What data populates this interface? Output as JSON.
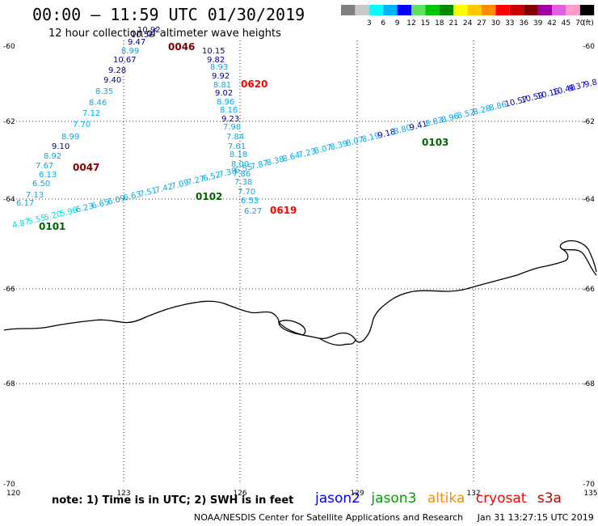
{
  "header": {
    "title": "00:00 – 11:59 UTC 01/30/2019",
    "subtitle": "12 hour collection of altimeter wave heights"
  },
  "legend": {
    "unit": "(ft)",
    "swatches": [
      {
        "label": "",
        "color": "#808080"
      },
      {
        "label": "3",
        "color": "#c8c8c8"
      },
      {
        "label": "6",
        "color": "#00ffff"
      },
      {
        "label": "9",
        "color": "#00b4ff"
      },
      {
        "label": "12",
        "color": "#0000ff"
      },
      {
        "label": "15",
        "color": "#60e060"
      },
      {
        "label": "18",
        "color": "#00c800"
      },
      {
        "label": "21",
        "color": "#008c00"
      },
      {
        "label": "24",
        "color": "#ffff00"
      },
      {
        "label": "27",
        "color": "#ffc800"
      },
      {
        "label": "30",
        "color": "#ff8c00"
      },
      {
        "label": "33",
        "color": "#ff0000"
      },
      {
        "label": "36",
        "color": "#c80000"
      },
      {
        "label": "39",
        "color": "#800000"
      },
      {
        "label": "42",
        "color": "#a000a0"
      },
      {
        "label": "45",
        "color": "#e060e0"
      },
      {
        "label": "70",
        "color": "#ff9ccc"
      },
      {
        "label": "",
        "color": "#000000"
      }
    ]
  },
  "axes": {
    "x_ticks": [
      "120",
      "123",
      "126",
      "129",
      "132",
      "135"
    ],
    "y_ticks": [
      "-60",
      "-62",
      "-64",
      "-66",
      "-68",
      "-70"
    ]
  },
  "tracks": [
    {
      "color_class": "jason3",
      "time_labels": [
        {
          "text": "0101",
          "color": "#006400"
        },
        {
          "text": "0102",
          "color": "#006400"
        },
        {
          "text": "0103",
          "color": "#006400"
        }
      ],
      "values": [
        "4.87",
        "5.55",
        "5.20",
        "5.96",
        "6.23",
        "6.65",
        "6.09",
        "6.63",
        "7.51",
        "7.42",
        "7.09",
        "7.27",
        "6.52",
        "7.38",
        "6.55",
        "7.87",
        "8.38",
        "8.64",
        "7.23",
        "8.07",
        "8.39",
        "8.07",
        "8.19",
        "9.18",
        "8.80",
        "9.41",
        "8.83",
        "8.96",
        "8.52",
        "8.28",
        "8.86",
        "10.57",
        "10.59",
        "10.16",
        "10.40",
        "9.37",
        "9.8"
      ]
    },
    {
      "color_class": "cryosat-ascending",
      "time_labels": [
        {
          "text": "0047",
          "color": "#800000"
        },
        {
          "text": "0046",
          "color": "#800000"
        }
      ],
      "values": [
        "6.17",
        "7.13",
        "6.50",
        "6.13",
        "7.67",
        "8.92",
        "9.10",
        "8.99",
        "7.70",
        "7.12",
        "8.46",
        "8.35",
        "9.40",
        "9.28",
        "10.67",
        "8.99",
        "9.47",
        "10.56",
        "10.92"
      ]
    },
    {
      "color_class": "cryosat-descending",
      "time_labels": [
        {
          "text": "0620",
          "color": "#ff0000"
        },
        {
          "text": "0619",
          "color": "#ff0000"
        }
      ],
      "values": [
        "10.15",
        "9.82",
        "8.93",
        "9.92",
        "8.81",
        "9.02",
        "8.96",
        "8.16",
        "9.23",
        "7.98",
        "7.84",
        "7.61",
        "8.18",
        "8.00",
        "7.86",
        "7.38",
        "7.70",
        "6.53",
        "6.27"
      ]
    }
  ],
  "satellites": [
    {
      "name": "jason2",
      "color": "#0000ff"
    },
    {
      "name": "jason3",
      "color": "#00a000"
    },
    {
      "name": "altika",
      "color": "#ff8c00"
    },
    {
      "name": "cryosat",
      "color": "#ff0000"
    },
    {
      "name": "s3a",
      "color": "#c00000"
    }
  ],
  "footer": {
    "note": "note: 1) Time is in UTC; 2) SWH is in feet",
    "credit": "NOAA/NESDIS Center for Satellite Applications and Research",
    "timestamp": "Jan 31 13:27:15 UTC 2019"
  }
}
